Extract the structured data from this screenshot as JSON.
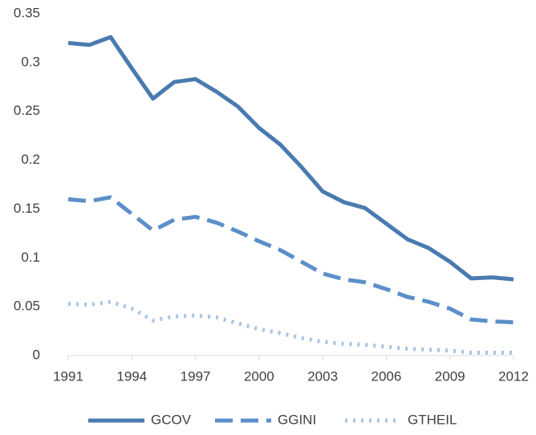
{
  "chart_data": {
    "type": "line",
    "x": [
      1991,
      1992,
      1993,
      1994,
      1995,
      1996,
      1997,
      1998,
      1999,
      2000,
      2001,
      2002,
      2003,
      2004,
      2005,
      2006,
      2007,
      2008,
      2009,
      2010,
      2011,
      2012
    ],
    "series": [
      {
        "name": "GCOV",
        "color": "#4a7ab0",
        "style": "solid",
        "values": [
          0.32,
          0.318,
          0.326,
          0.294,
          0.263,
          0.28,
          0.283,
          0.27,
          0.255,
          0.233,
          0.216,
          0.193,
          0.168,
          0.157,
          0.151,
          0.135,
          0.119,
          0.11,
          0.096,
          0.079,
          0.08,
          0.078
        ]
      },
      {
        "name": "GGINI",
        "color": "#5b8fc9",
        "style": "dashed",
        "values": [
          0.16,
          0.158,
          0.162,
          0.145,
          0.128,
          0.139,
          0.142,
          0.136,
          0.127,
          0.117,
          0.108,
          0.096,
          0.084,
          0.078,
          0.075,
          0.068,
          0.06,
          0.055,
          0.048,
          0.037,
          0.035,
          0.034
        ]
      },
      {
        "name": "GTHEIL",
        "color": "#a8c4e6",
        "style": "dotted",
        "values": [
          0.053,
          0.052,
          0.055,
          0.048,
          0.036,
          0.04,
          0.041,
          0.039,
          0.033,
          0.027,
          0.023,
          0.018,
          0.014,
          0.012,
          0.011,
          0.009,
          0.007,
          0.006,
          0.005,
          0.003,
          0.003,
          0.003
        ]
      }
    ],
    "xlim": [
      1991,
      2012
    ],
    "xticks": [
      1991,
      1994,
      1997,
      2000,
      2003,
      2006,
      2009,
      2012
    ],
    "ylim": [
      0,
      0.35
    ],
    "yticks": [
      0,
      0.05,
      0.1,
      0.15,
      0.2,
      0.25,
      0.3,
      0.35
    ],
    "grid": false,
    "legend": "bottom"
  }
}
